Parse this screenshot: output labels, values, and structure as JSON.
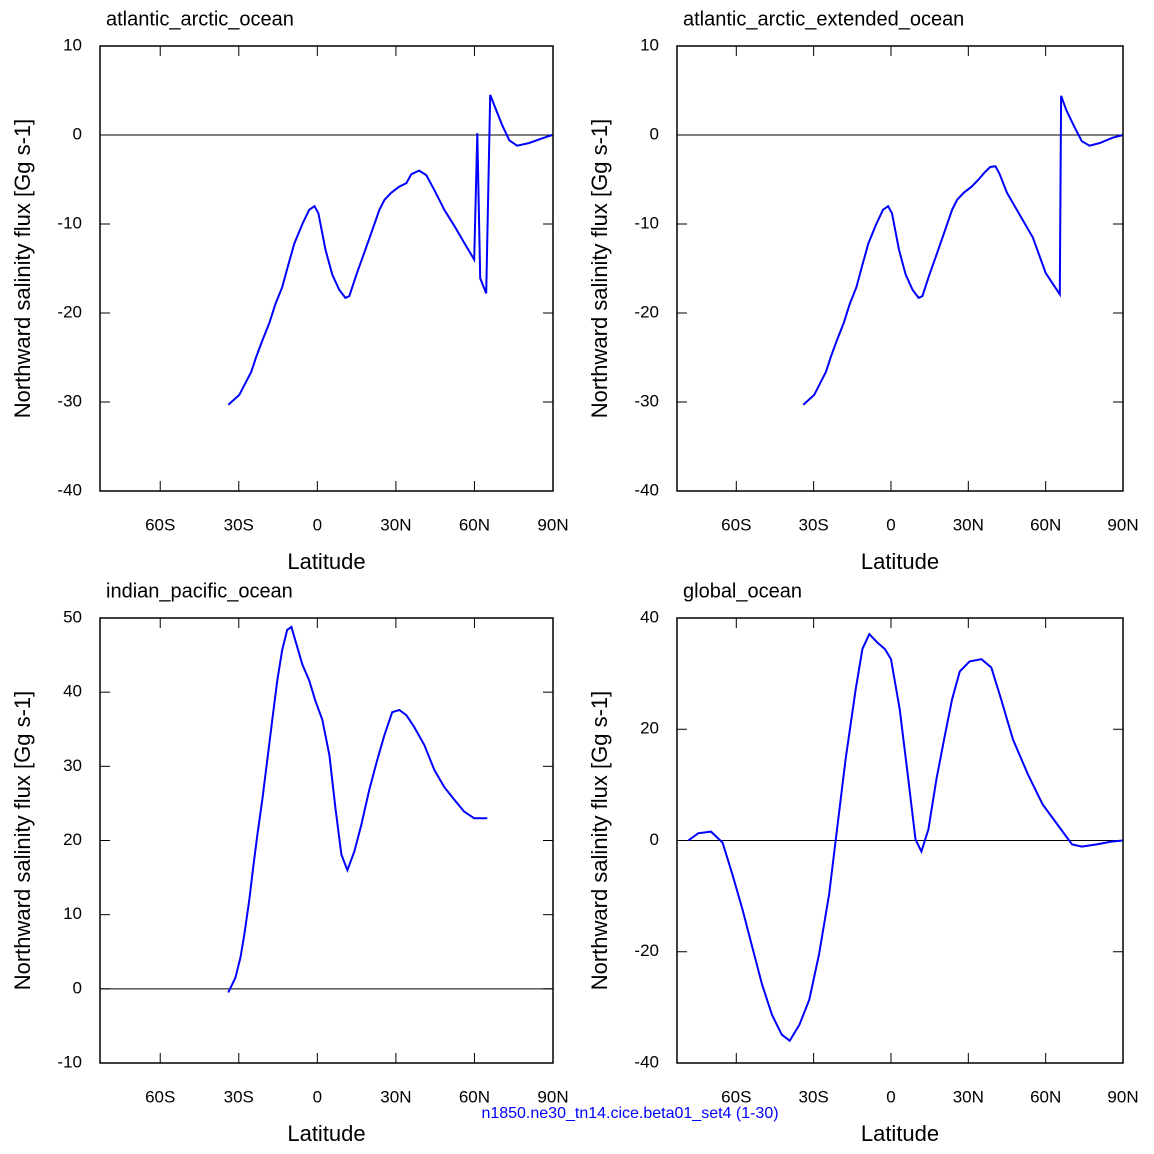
{
  "chart_data": [
    {
      "type": "line",
      "title": "atlantic_arctic_ocean",
      "xlabel": "Latitude",
      "ylabel": "Northward salinity flux [Gg s-1]",
      "xlim": [
        -83,
        90
      ],
      "xticks": [
        {
          "value": -60,
          "label": "60S"
        },
        {
          "value": -30,
          "label": "30S"
        },
        0,
        {
          "value": 30,
          "label": "30N"
        },
        {
          "value": 60,
          "label": "60N"
        },
        {
          "value": 90,
          "label": "90N"
        }
      ],
      "ylim": [
        -40,
        10
      ],
      "yticks": [
        -40,
        -30,
        -20,
        -10,
        0,
        10
      ],
      "reference_line": 0,
      "color": "#0000ff",
      "x": [
        -34,
        -29.8,
        -27.5,
        -25.2,
        -23.3,
        -21,
        -18.3,
        -16,
        -13.4,
        -11.1,
        -8.8,
        -5.7,
        -3.1,
        -1.1,
        0.4,
        3.1,
        5.7,
        8.4,
        10.7,
        12.2,
        14.9,
        17.6,
        20.6,
        23.7,
        25.6,
        28.2,
        31.3,
        34,
        35.9,
        38.9,
        41.6,
        44.7,
        48.5,
        52.3,
        56.1,
        59.9,
        61.1,
        62.2,
        64.5,
        66,
        68.3,
        70.6,
        73.3,
        76.3,
        80.9,
        86.6,
        89.7
      ],
      "values": [
        -30.3,
        -29.2,
        -27.9,
        -26.6,
        -24.9,
        -23.1,
        -21.1,
        -19.0,
        -17.1,
        -14.6,
        -12.2,
        -10.0,
        -8.4,
        -8.0,
        -8.8,
        -12.9,
        -15.7,
        -17.4,
        -18.3,
        -18.1,
        -15.7,
        -13.5,
        -11.0,
        -8.4,
        -7.3,
        -6.5,
        -5.8,
        -5.4,
        -4.4,
        -4.0,
        -4.5,
        -6.2,
        -8.4,
        -10.2,
        -12.1,
        -14.0,
        0.2,
        -16.1,
        -17.8,
        4.5,
        2.8,
        1.1,
        -0.6,
        -1.2,
        -0.9,
        -0.3,
        0
      ]
    },
    {
      "type": "line",
      "title": "atlantic_arctic_extended_ocean",
      "xlabel": "Latitude",
      "ylabel": "Northward salinity flux [Gg s-1]",
      "xlim": [
        -83,
        90
      ],
      "xticks": [
        {
          "value": -60,
          "label": "60S"
        },
        {
          "value": -30,
          "label": "30S"
        },
        0,
        {
          "value": 30,
          "label": "30N"
        },
        {
          "value": 60,
          "label": "60N"
        },
        {
          "value": 90,
          "label": "90N"
        }
      ],
      "ylim": [
        -40,
        10
      ],
      "yticks": [
        -40,
        -30,
        -20,
        -10,
        0,
        10
      ],
      "reference_line": 0,
      "color": "#0000ff",
      "x": [
        -34,
        -29.8,
        -27.5,
        -25.2,
        -23.3,
        -21,
        -18.3,
        -16,
        -13.4,
        -11.1,
        -8.8,
        -5.7,
        -3.1,
        -1.1,
        0.4,
        3.1,
        5.7,
        8.4,
        10.7,
        12.2,
        14.9,
        17.6,
        20.6,
        23.7,
        25.6,
        28.2,
        31.3,
        34,
        36,
        38.5,
        40.5,
        42,
        45,
        50,
        55,
        60,
        65.5,
        66,
        68,
        71,
        74,
        77,
        81,
        86,
        90
      ],
      "values": [
        -30.3,
        -29.2,
        -27.9,
        -26.6,
        -24.9,
        -23.1,
        -21.1,
        -19.0,
        -17.1,
        -14.6,
        -12.2,
        -10.0,
        -8.4,
        -8.0,
        -8.8,
        -12.9,
        -15.7,
        -17.4,
        -18.3,
        -18.1,
        -15.7,
        -13.5,
        -11.0,
        -8.4,
        -7.3,
        -6.5,
        -5.8,
        -5.0,
        -4.3,
        -3.6,
        -3.5,
        -4.3,
        -6.5,
        -9.0,
        -11.5,
        -15.5,
        -17.9,
        4.4,
        2.8,
        1.0,
        -0.7,
        -1.2,
        -0.9,
        -0.3,
        0
      ]
    },
    {
      "type": "line",
      "title": "indian_pacific_ocean",
      "xlabel": "Latitude",
      "ylabel": "Northward salinity flux [Gg s-1]",
      "xlim": [
        -83,
        90
      ],
      "xticks": [
        {
          "value": -60,
          "label": "60S"
        },
        {
          "value": -30,
          "label": "30S"
        },
        0,
        {
          "value": 30,
          "label": "30N"
        },
        {
          "value": 60,
          "label": "60N"
        },
        {
          "value": 90,
          "label": "90N"
        }
      ],
      "ylim": [
        -10,
        50
      ],
      "yticks": [
        -10,
        0,
        10,
        20,
        30,
        40,
        50
      ],
      "reference_line": 0,
      "color": "#0000ff",
      "x": [
        -34,
        -31.3,
        -29.4,
        -27.9,
        -26,
        -24.4,
        -22.9,
        -21,
        -19.1,
        -17.2,
        -15.3,
        -13.4,
        -11.5,
        -9.9,
        -8.4,
        -5.7,
        -3.1,
        -0.8,
        1.9,
        4.6,
        6.9,
        9.2,
        11.5,
        14.1,
        16.8,
        19.8,
        22.9,
        25.6,
        28.6,
        31.3,
        34,
        37,
        40.8,
        44.7,
        48.5,
        52.3,
        56.1,
        59.9,
        64.9
      ],
      "values": [
        -0.5,
        1.5,
        4.2,
        7.3,
        12.0,
        16.6,
        20.8,
        25.5,
        30.9,
        36.3,
        41.6,
        45.7,
        48.4,
        48.8,
        47.0,
        43.7,
        41.6,
        38.9,
        36.3,
        31.5,
        24.4,
        18.1,
        16.0,
        18.5,
        22.1,
        26.8,
        30.9,
        34.2,
        37.3,
        37.6,
        36.9,
        35.3,
        32.9,
        29.5,
        27.2,
        25.5,
        23.9,
        23.0,
        23.0
      ]
    },
    {
      "type": "line",
      "title": "global_ocean",
      "xlabel": "Latitude",
      "ylabel": "Northward salinity flux [Gg s-1]",
      "xlim": [
        -83,
        90
      ],
      "xticks": [
        {
          "value": -60,
          "label": "60S"
        },
        {
          "value": -30,
          "label": "30S"
        },
        0,
        {
          "value": 30,
          "label": "30N"
        },
        {
          "value": 60,
          "label": "60N"
        },
        {
          "value": 90,
          "label": "90N"
        }
      ],
      "ylim": [
        -40,
        40
      ],
      "yticks": [
        -40,
        -20,
        0,
        20,
        40
      ],
      "reference_line": 0,
      "color": "#0000ff",
      "x": [
        -78.6,
        -74.8,
        -69.8,
        -65.3,
        -61.5,
        -57.6,
        -53.8,
        -50,
        -46.2,
        -42.4,
        -39.3,
        -35.5,
        -31.7,
        -27.9,
        -24,
        -21.4,
        -17.6,
        -13.7,
        -11.1,
        -8.4,
        -5.3,
        -2.3,
        0,
        3.4,
        6.5,
        9.5,
        11.8,
        14.5,
        17.6,
        20.6,
        23.7,
        26.7,
        30.5,
        35.1,
        38.9,
        42.7,
        47.3,
        53.1,
        58.8,
        64.5,
        70.2,
        74,
        79.8,
        85.5,
        90
      ],
      "values": [
        0,
        1.3,
        1.6,
        -0.4,
        -6.1,
        -12.4,
        -19.2,
        -25.9,
        -31.3,
        -34.9,
        -36.0,
        -33.1,
        -28.6,
        -20.5,
        -9.7,
        0.2,
        14.6,
        27.2,
        34.4,
        37.1,
        35.6,
        34.4,
        32.6,
        23.6,
        11.9,
        0.2,
        -2.0,
        2.0,
        11.0,
        18.2,
        25.4,
        30.4,
        32.2,
        32.6,
        31.1,
        25.4,
        18.2,
        11.9,
        6.5,
        2.9,
        -0.7,
        -1.1,
        -0.7,
        -0.2,
        0
      ]
    }
  ],
  "footer": "n1850.ne30_tn14.cice.beta01_set4 (1-30)"
}
